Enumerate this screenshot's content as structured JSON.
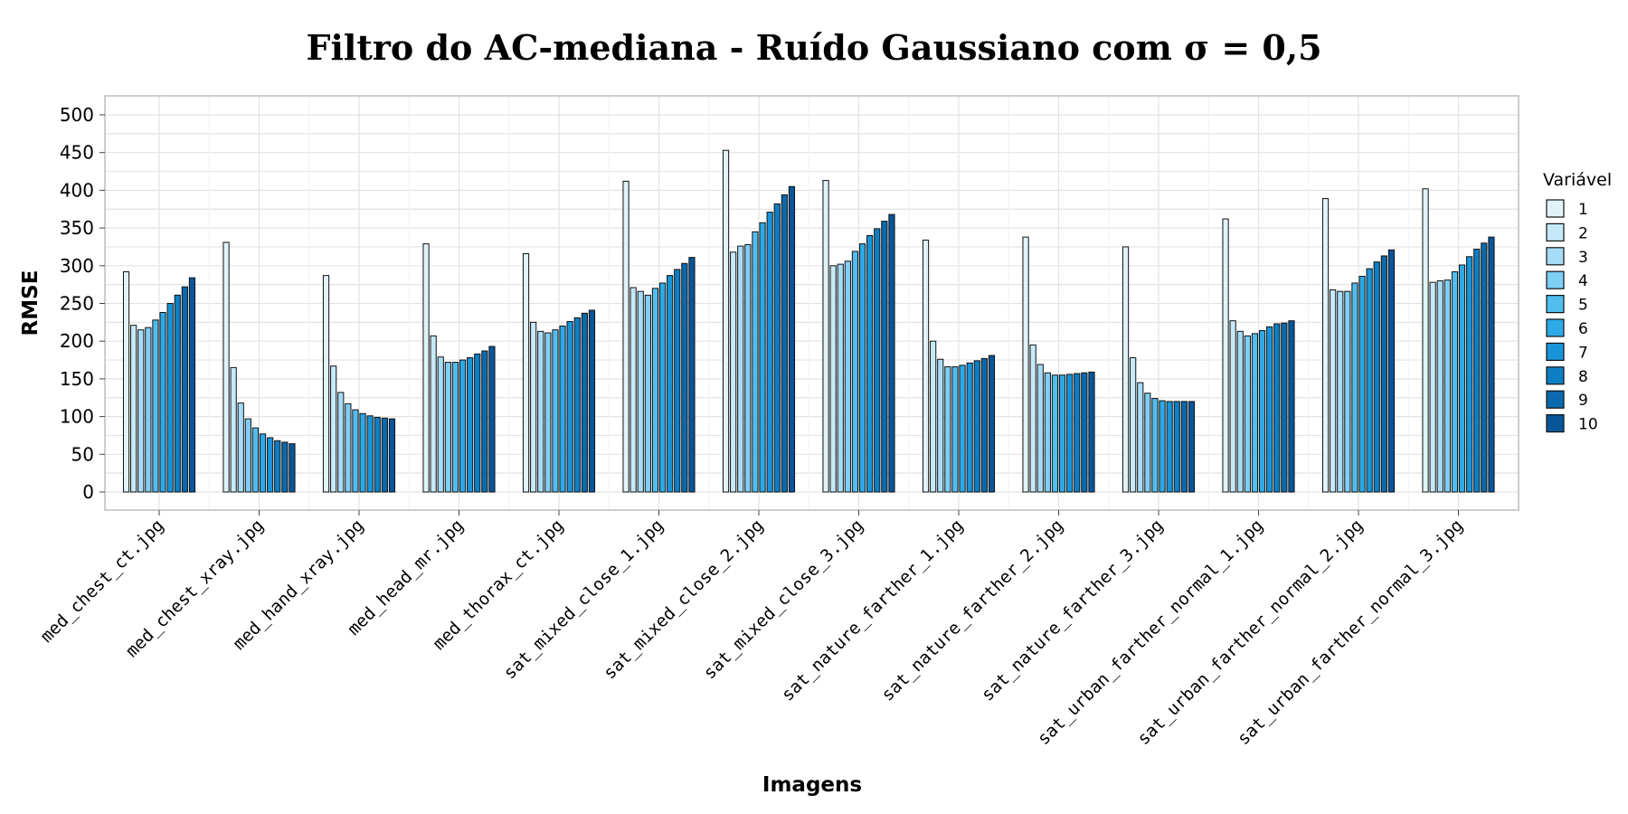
{
  "chart_data": {
    "type": "bar",
    "title": "Filtro do AC-mediana - Ruído Gaussiano com σ = 0,5",
    "xlabel": "Imagens",
    "ylabel": "RMSE",
    "ylim": [
      0,
      520
    ],
    "yticks": [
      0,
      50,
      100,
      150,
      200,
      250,
      300,
      350,
      400,
      450,
      500
    ],
    "grid": true,
    "legend_title": "Variável",
    "legend_position": "right",
    "categories": [
      "med_chest_ct.jpg",
      "med_chest_xray.jpg",
      "med_hand_xray.jpg",
      "med_head_mr.jpg",
      "med_thorax_ct.jpg",
      "sat_mixed_close_1.jpg",
      "sat_mixed_close_2.jpg",
      "sat_mixed_close_3.jpg",
      "sat_nature_farther_1.jpg",
      "sat_nature_farther_2.jpg",
      "sat_nature_farther_3.jpg",
      "sat_urban_farther_normal_1.jpg",
      "sat_urban_farther_normal_2.jpg",
      "sat_urban_farther_normal_3.jpg"
    ],
    "series": [
      {
        "name": "1",
        "color": "#e0f3f8",
        "values": [
          292,
          331,
          287,
          329,
          316,
          412,
          453,
          413,
          334,
          338,
          325,
          362,
          389,
          402
        ]
      },
      {
        "name": "2",
        "color": "#c6e9fa",
        "values": [
          221,
          165,
          167,
          207,
          225,
          271,
          318,
          300,
          200,
          195,
          178,
          227,
          268,
          278
        ]
      },
      {
        "name": "3",
        "color": "#a6dcf7",
        "values": [
          215,
          118,
          132,
          179,
          213,
          266,
          326,
          302,
          176,
          169,
          145,
          213,
          266,
          280
        ]
      },
      {
        "name": "4",
        "color": "#7fcef5",
        "values": [
          218,
          97,
          117,
          172,
          211,
          261,
          328,
          306,
          166,
          158,
          131,
          207,
          266,
          281
        ]
      },
      {
        "name": "5",
        "color": "#52bdef",
        "values": [
          228,
          85,
          109,
          172,
          215,
          270,
          345,
          319,
          166,
          155,
          124,
          210,
          277,
          292
        ]
      },
      {
        "name": "6",
        "color": "#2ca9e6",
        "values": [
          238,
          77,
          104,
          175,
          220,
          277,
          357,
          329,
          168,
          155,
          121,
          214,
          286,
          301
        ]
      },
      {
        "name": "7",
        "color": "#1895d9",
        "values": [
          250,
          72,
          101,
          178,
          226,
          287,
          371,
          340,
          171,
          156,
          120,
          219,
          296,
          312
        ]
      },
      {
        "name": "8",
        "color": "#0d7fc4",
        "values": [
          261,
          68,
          99,
          183,
          231,
          295,
          382,
          349,
          174,
          157,
          120,
          223,
          305,
          322
        ]
      },
      {
        "name": "9",
        "color": "#0a6aad",
        "values": [
          272,
          66,
          98,
          187,
          237,
          303,
          394,
          359,
          177,
          158,
          120,
          224,
          313,
          330
        ]
      },
      {
        "name": "10",
        "color": "#08559a",
        "values": [
          284,
          64,
          97,
          193,
          241,
          311,
          405,
          368,
          181,
          159,
          120,
          227,
          321,
          338
        ]
      }
    ]
  }
}
